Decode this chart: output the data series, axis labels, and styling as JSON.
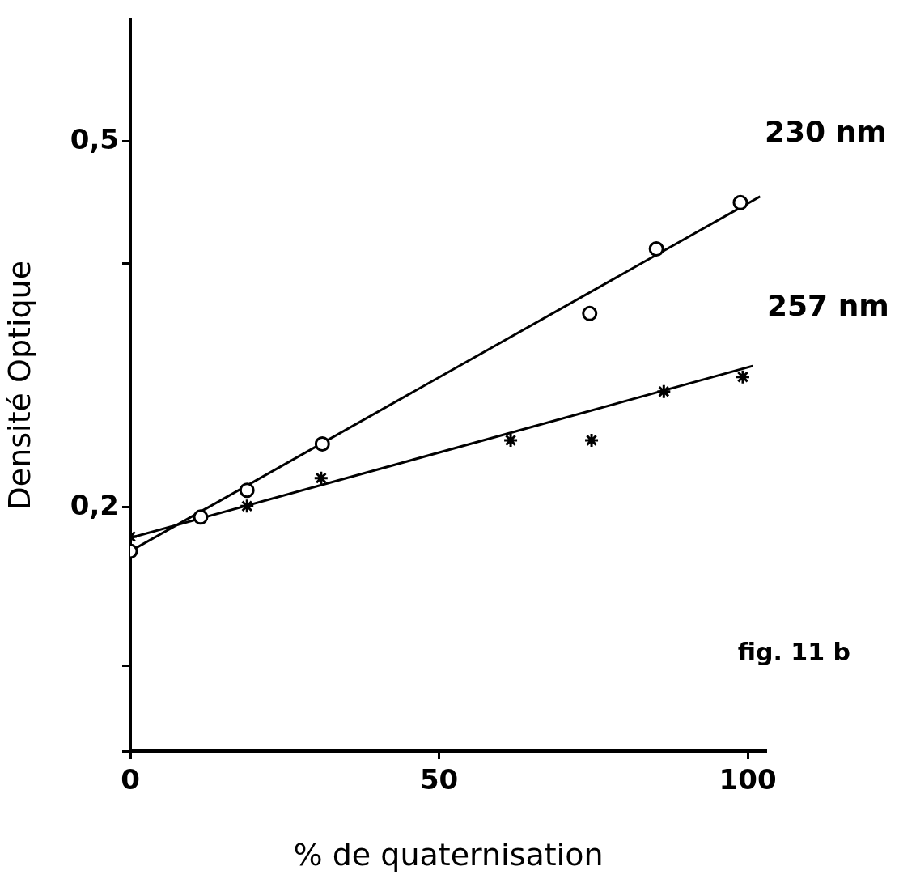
{
  "chart_data": {
    "type": "scatter",
    "xlabel": "% de quaternisation",
    "ylabel": "Densité Optique",
    "xlim": [
      0,
      103
    ],
    "xticks": [
      0,
      50,
      100
    ],
    "ylim": [
      0,
      0.6
    ],
    "yticks": [
      {
        "value": 0,
        "label": null
      },
      {
        "value": 0.07,
        "label": null
      },
      {
        "value": 0.2,
        "label": "0,2"
      },
      {
        "value": 0.4,
        "label": null
      },
      {
        "value": 0.5,
        "label": "0,5"
      }
    ],
    "grid": false,
    "legend": false,
    "series": [
      {
        "name": "230 nm",
        "marker": "circle",
        "color": "#000000",
        "x": [
          0,
          11.4,
          18.9,
          31.1,
          74.4,
          85.2,
          98.8
        ],
        "values": [
          0.164,
          0.192,
          0.214,
          0.252,
          0.359,
          0.412,
          0.45
        ]
      },
      {
        "name": "257 nm",
        "marker": "cross",
        "color": "#000000",
        "x": [
          0,
          11.4,
          18.9,
          30.9,
          61.6,
          74.7,
          86.4,
          99.2
        ],
        "values": [
          0.176,
          null,
          0.201,
          0.224,
          0.255,
          0.255,
          0.295,
          0.307
        ]
      },
      {
        "type": "line",
        "marker": "none",
        "color": "#000000",
        "x": [
          0,
          102
        ],
        "values": [
          0.164,
          0.455
        ]
      },
      {
        "type": "line",
        "marker": "none",
        "color": "#000000",
        "x": [
          0,
          100.8
        ],
        "values": [
          0.175,
          0.316
        ]
      }
    ],
    "annotations": [
      "fig. 11 b"
    ]
  }
}
